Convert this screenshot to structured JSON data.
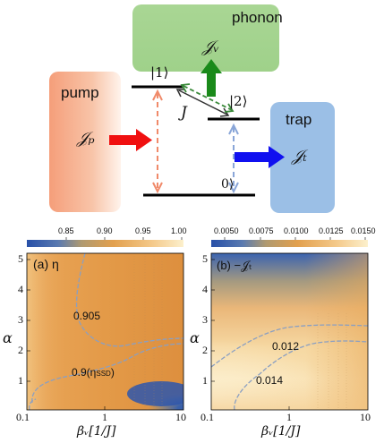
{
  "diagram": {
    "phonon_label": "phonon",
    "pump_label": "pump",
    "trap_label": "trap",
    "level_1": "|1⟩",
    "level_2": "|2⟩",
    "level_0": "0⟩",
    "coupling": "J",
    "flux_v": "𝒥ᵥ",
    "flux_p": "𝒥ₚ",
    "flux_t": "𝒥ₜ",
    "colors": {
      "phonon_box": "#9fd18a",
      "pump_box": "#f59e7a",
      "trap_box": "#9bbfe6",
      "arrow_green": "#1a8a1a",
      "arrow_red": "#f01010",
      "arrow_blue": "#1010f0"
    }
  },
  "panel_a": {
    "label": "(a) η",
    "contour_1": "0.905",
    "contour_2": "0.9(η",
    "contour_2_sub": "SSD",
    "contour_2_tail": ")",
    "colorbar_ticks": [
      "0.85",
      "0.90",
      "0.95",
      "1.00"
    ],
    "y_ticks": [
      "5",
      "4",
      "3",
      "2",
      "1"
    ],
    "x_ticks": [
      "0.1",
      "1",
      "10"
    ]
  },
  "panel_b": {
    "label": "(b) −𝒥ₜ",
    "contour_1": "0.012",
    "contour_2": "0.014",
    "colorbar_ticks": [
      "0.0050",
      "0.0075",
      "0.0100",
      "0.0125",
      "0.0150"
    ],
    "y_ticks": [
      "5",
      "4",
      "3",
      "2",
      "1"
    ],
    "x_ticks": [
      "0.1",
      "1",
      "10"
    ]
  },
  "axes": {
    "ylabel": "α",
    "xlabel": "βᵥ[1/J]"
  }
}
